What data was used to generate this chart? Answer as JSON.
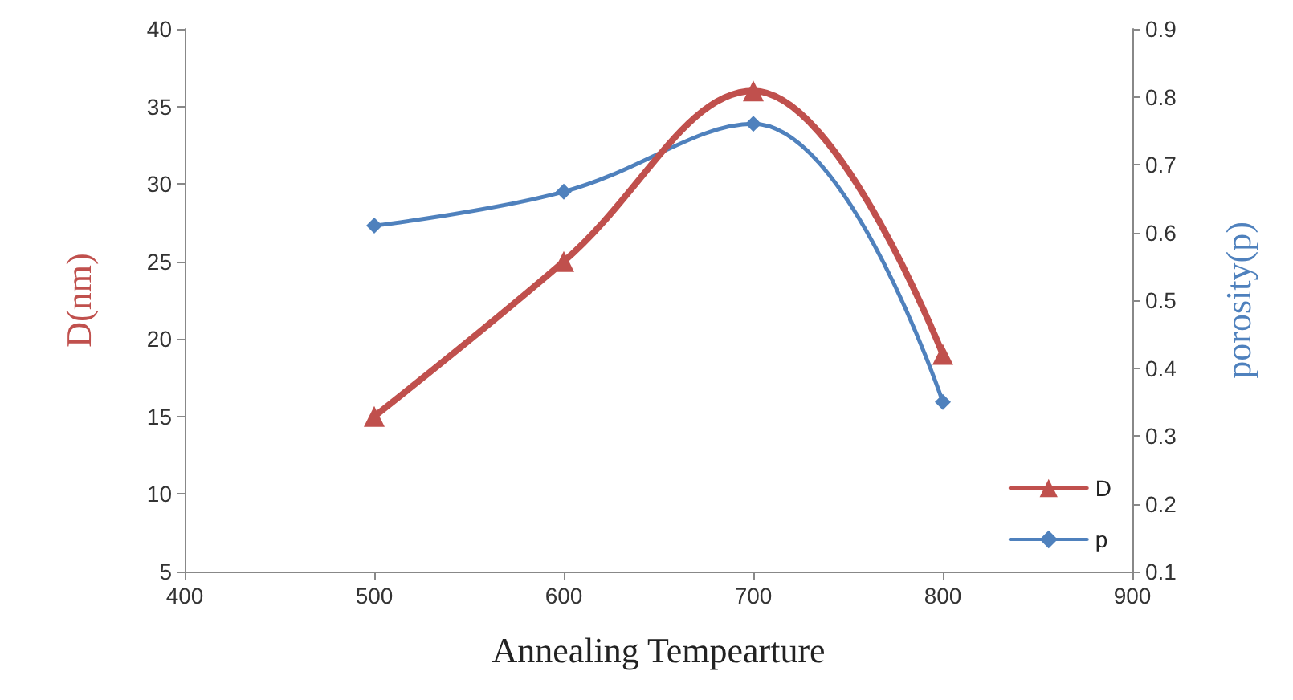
{
  "chart_data": {
    "type": "line",
    "xlabel": "Annealing Tempearture",
    "ylabel": "D(nm)",
    "y2label": "porosity(p)",
    "x": [
      500,
      600,
      700,
      800
    ],
    "series": [
      {
        "name": "D",
        "color": "#c0504d",
        "marker": "triangle",
        "values": [
          15,
          25,
          36,
          19
        ]
      },
      {
        "name": "p",
        "color": "#4f81bd",
        "marker": "diamond",
        "axis": "y2",
        "values": [
          0.61,
          0.66,
          0.76,
          0.35
        ]
      }
    ],
    "xlim": [
      400,
      900
    ],
    "xticks": [
      400,
      500,
      600,
      700,
      800,
      900
    ],
    "ylim": [
      5,
      40
    ],
    "yticks": [
      5,
      10,
      15,
      20,
      25,
      30,
      35,
      40
    ],
    "y2lim": [
      0.1,
      0.9
    ],
    "y2ticks": [
      0.1,
      0.2,
      0.3,
      0.4,
      0.5,
      0.6,
      0.7,
      0.8,
      0.9
    ],
    "grid": false,
    "legend": "bottom right",
    "line_style": "solid"
  }
}
